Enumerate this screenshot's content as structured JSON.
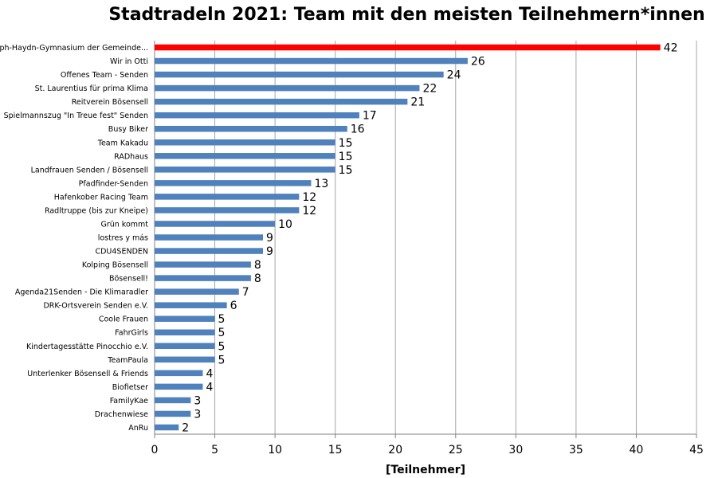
{
  "chart_data": {
    "type": "bar",
    "orientation": "horizontal",
    "title": "Stadtradeln 2021: Team mit den meisten Teilnehmern*innen",
    "xlabel": "[Teilnehmer]",
    "ylabel": "",
    "xlim": [
      0,
      45
    ],
    "x_ticks": [
      0,
      5,
      10,
      15,
      20,
      25,
      30,
      35,
      40,
      45
    ],
    "grid": "vertical",
    "colors": {
      "bar": "#4F81BD",
      "highlight": "#FF0000",
      "grid": "#A6A6A6"
    },
    "categories": [
      "Joseph-Haydn-Gymnasium der Gemeinde...",
      "Wir in Otti",
      "Offenes Team - Senden",
      "St. Laurentius für prima Klima",
      "Reitverein Bösensell",
      "Spielmannszug \"In Treue fest\" Senden",
      "Busy Biker",
      "Team Kakadu",
      "RADhaus",
      "Landfrauen Senden / Bösensell",
      "Pfadfinder-Senden",
      "Hafenkober Racing Team",
      "Radltruppe (bis zur Kneipe)",
      "Grün kommt",
      "lostres y más",
      "CDU4SENDEN",
      "Kolping Bösensell",
      "Bösensell!",
      "Agenda21Senden - Die Klimaradler",
      "DRK-Ortsverein Senden e.V.",
      "Coole Frauen",
      "FahrGirls",
      "Kindertagesstätte Pinocchio e.V.",
      "TeamPaula",
      "Unterlenker Bösensell & Friends",
      "Biofietser",
      "FamilyKae",
      "Drachenwiese",
      "AnRu"
    ],
    "values": [
      42,
      26,
      24,
      22,
      21,
      17,
      16,
      15,
      15,
      15,
      13,
      12,
      12,
      10,
      9,
      9,
      8,
      8,
      7,
      6,
      5,
      5,
      5,
      5,
      4,
      4,
      3,
      3,
      2
    ],
    "highlight_index": 0
  }
}
